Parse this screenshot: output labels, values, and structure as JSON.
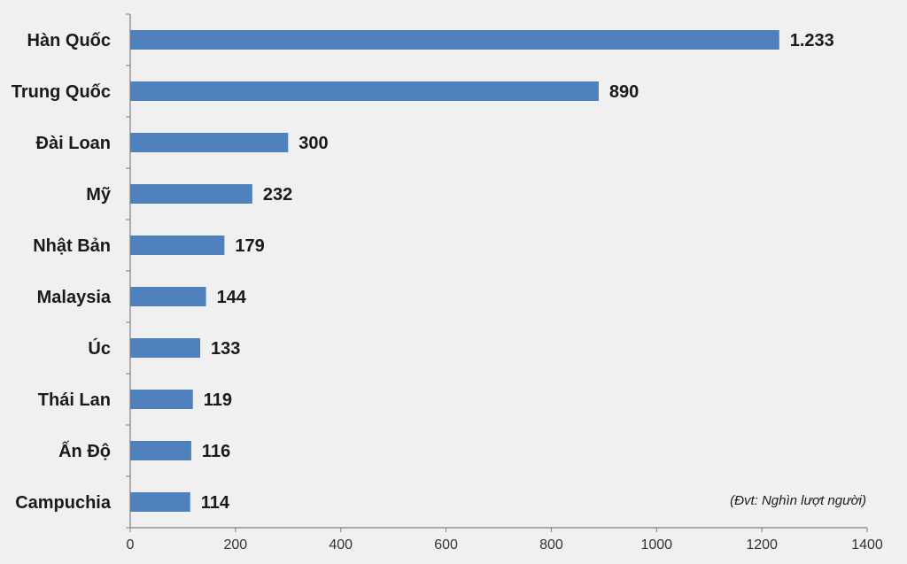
{
  "chart_data": {
    "type": "bar",
    "orientation": "horizontal",
    "categories": [
      "Hàn Quốc",
      "Trung Quốc",
      "Đài Loan",
      "Mỹ",
      "Nhật Bản",
      "Malaysia",
      "Úc",
      "Thái Lan",
      "Ấn Độ",
      "Campuchia"
    ],
    "values": [
      1233,
      890,
      300,
      232,
      179,
      144,
      133,
      119,
      116,
      114
    ],
    "value_labels": [
      "1.233",
      "890",
      "300",
      "232",
      "179",
      "144",
      "133",
      "119",
      "116",
      "114"
    ],
    "xlim": [
      0,
      1400
    ],
    "xticks": [
      0,
      200,
      400,
      600,
      800,
      1000,
      1200,
      1400
    ],
    "annotation": "(Đvt: Nghìn lượt người)",
    "grid": false,
    "legend": "none",
    "bar_color": "#4f81bd"
  }
}
